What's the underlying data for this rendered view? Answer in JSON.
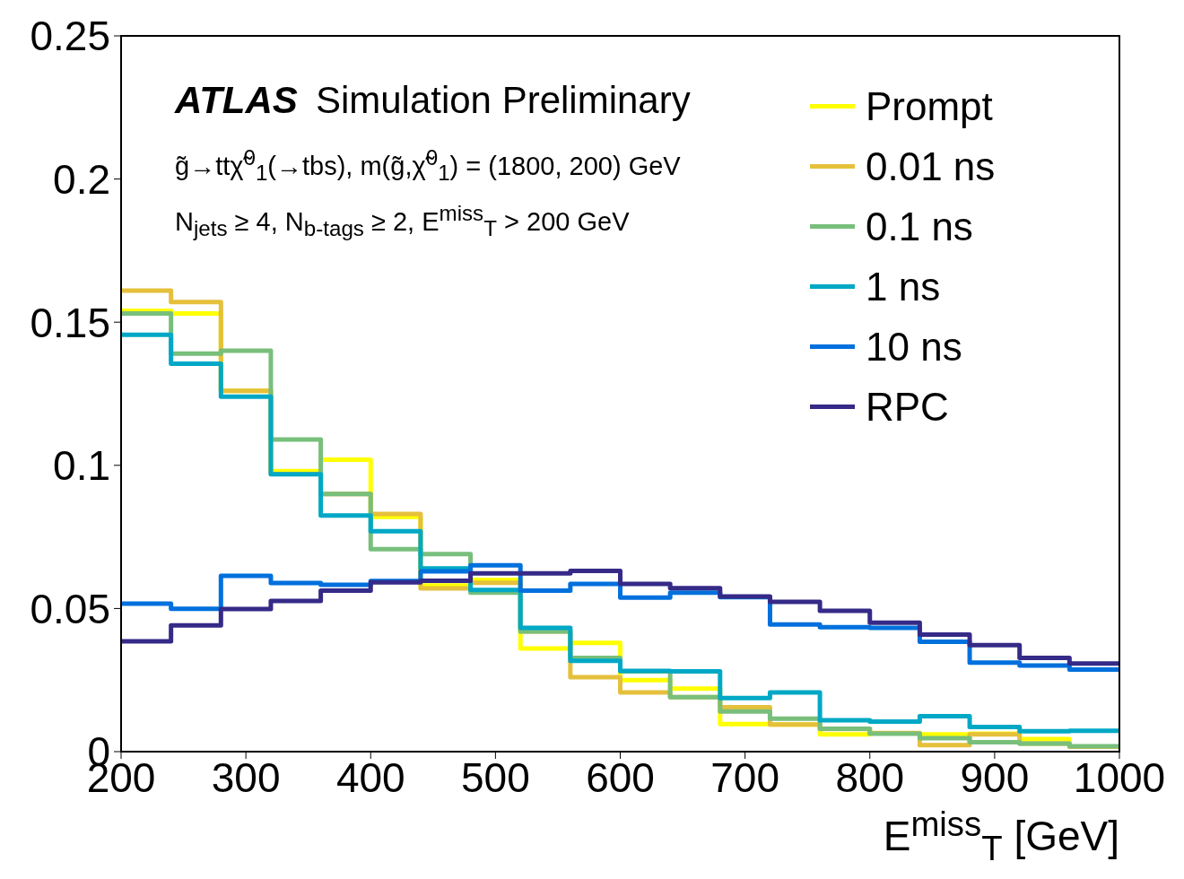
{
  "chart_data": {
    "type": "histogram",
    "title": "ATLAS Simulation Preliminary",
    "xlabel": "E$^{miss}$$_{T}$ [GeV]",
    "annotations": [
      "g̃→ttχ̃$^{0}$$_{1}$(→tbs), m(g̃,χ̃$^{0}$$_{1}$) = (1800, 200) GeV",
      "N$_{jets}$ ≥ 4, N$_{b-tags}$ ≥ 2, E$^{miss}$$_{T}$ > 200 GeV"
    ],
    "bins": [
      200,
      240,
      280,
      320,
      360,
      400,
      440,
      480,
      520,
      560,
      600,
      640,
      680,
      720,
      760,
      800,
      840,
      880,
      920,
      960,
      1000
    ],
    "series": [
      {
        "name": "Prompt",
        "color": "#ffff00",
        "values": [
          0.154,
          0.153,
          0.126,
          0.098,
          0.102,
          0.082,
          0.058,
          0.06,
          0.036,
          0.038,
          0.025,
          0.022,
          0.0096,
          0.0095,
          0.006,
          0.0064,
          0.006,
          0.0063,
          0.0044,
          0.0017
        ]
      },
      {
        "name": "0.01 ns",
        "color": "#e5c03b",
        "values": [
          0.161,
          0.157,
          0.126,
          0.097,
          0.09,
          0.083,
          0.057,
          0.059,
          0.042,
          0.026,
          0.0207,
          0.019,
          0.0155,
          0.0095,
          0.0079,
          0.0065,
          0.0023,
          0.006,
          0.0028,
          0.0017
        ]
      },
      {
        "name": "0.1 ns",
        "color": "#78bf7b",
        "values": [
          0.153,
          0.139,
          0.14,
          0.109,
          0.09,
          0.0707,
          0.069,
          0.0555,
          0.042,
          0.0327,
          0.028,
          0.019,
          0.014,
          0.0115,
          0.008,
          0.0063,
          0.0047,
          0.0033,
          0.0028,
          0.0019
        ]
      },
      {
        "name": "1 ns",
        "color": "#00a8c6",
        "values": [
          0.1456,
          0.1355,
          0.124,
          0.0969,
          0.0825,
          0.077,
          0.064,
          0.0565,
          0.0432,
          0.0317,
          0.0282,
          0.028,
          0.0187,
          0.0207,
          0.011,
          0.0105,
          0.0124,
          0.0086,
          0.0071,
          0.0073
        ]
      },
      {
        "name": "10 ns",
        "color": "#0070dd",
        "values": [
          0.0517,
          0.0499,
          0.0614,
          0.0589,
          0.0583,
          0.0596,
          0.063,
          0.0651,
          0.0562,
          0.0586,
          0.0538,
          0.0555,
          0.054,
          0.0444,
          0.0435,
          0.0432,
          0.0384,
          0.0311,
          0.0301,
          0.0287
        ]
      },
      {
        "name": "RPC",
        "color": "#352a87",
        "values": [
          0.0385,
          0.0441,
          0.0498,
          0.0526,
          0.0562,
          0.0591,
          0.0597,
          0.0623,
          0.0623,
          0.0631,
          0.0586,
          0.0571,
          0.0542,
          0.0523,
          0.0492,
          0.045,
          0.0409,
          0.0372,
          0.0327,
          0.0308
        ]
      }
    ],
    "xlim": [
      200,
      1000
    ],
    "xticks": [
      200,
      300,
      400,
      500,
      600,
      700,
      800,
      900,
      1000
    ],
    "ylim": [
      0,
      0.25
    ],
    "yticks": [
      0,
      0.05,
      0.1,
      0.15,
      0.2,
      0.25
    ],
    "grid": false,
    "legend": "top right"
  }
}
